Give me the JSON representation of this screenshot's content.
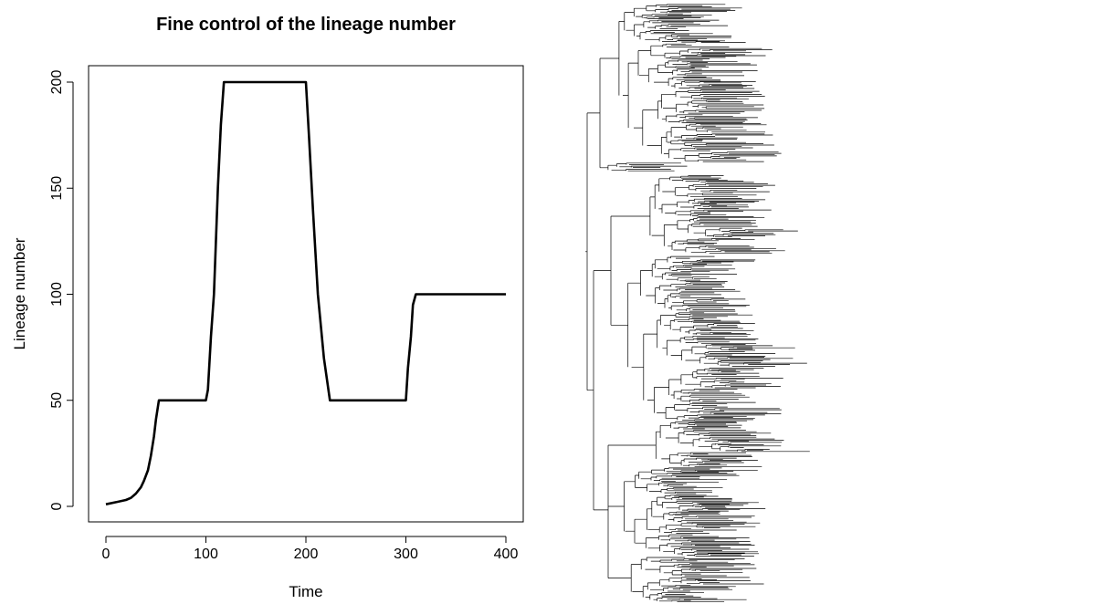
{
  "chart_data": {
    "type": "line",
    "title": "Fine control of the lineage number",
    "xlabel": "Time",
    "ylabel": "Lineage number",
    "xlim": [
      0,
      400
    ],
    "ylim": [
      0,
      200
    ],
    "x_ticks": [
      0,
      100,
      200,
      300,
      400
    ],
    "y_ticks": [
      0,
      50,
      100,
      150,
      200
    ],
    "grid": false,
    "series": [
      {
        "x": [
          0,
          10,
          20,
          25,
          30,
          35,
          38,
          42,
          45,
          48,
          50,
          53,
          55,
          100,
          102,
          105,
          108,
          112,
          115,
          118,
          200,
          203,
          207,
          212,
          218,
          224,
          226,
          300,
          302,
          305,
          307,
          310,
          400
        ],
        "y": [
          1,
          2,
          3,
          4,
          6,
          9,
          12,
          17,
          24,
          33,
          41,
          50,
          50,
          50,
          55,
          80,
          100,
          150,
          180,
          200,
          200,
          175,
          140,
          100,
          70,
          50,
          50,
          50,
          65,
          80,
          95,
          100,
          100
        ]
      }
    ]
  },
  "tree": {
    "description": "phylogenetic tree",
    "color": "#000000"
  }
}
